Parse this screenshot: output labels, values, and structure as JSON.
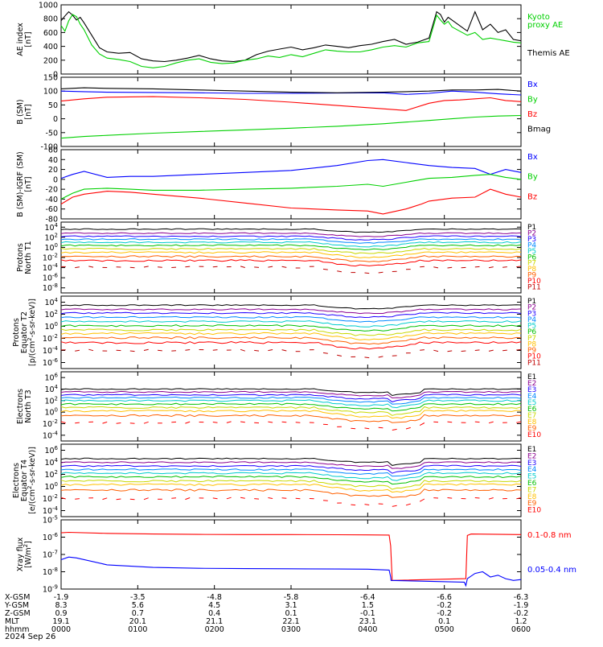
{
  "figure": {
    "date": "2024 Sep 26"
  },
  "colors": {
    "black": "#000000",
    "green": "#00d000",
    "blue": "#0000ff",
    "red": "#ff0000",
    "ramp": [
      "#000000",
      "#8b0090",
      "#2000ff",
      "#0088ff",
      "#00cccc",
      "#00c000",
      "#c8d800",
      "#ffc000",
      "#ff6000",
      "#ff0000",
      "#c00000"
    ]
  },
  "chart_data": [
    {
      "id": "ae",
      "type": "line",
      "ylabel": "AE index\n[nT]",
      "ylim": [
        0,
        1000
      ],
      "yticks": [
        "0",
        "200",
        "400",
        "600",
        "800",
        "1000"
      ],
      "yticks_v": [
        0,
        200,
        400,
        600,
        800,
        1000
      ],
      "legend": [
        {
          "label": "Kyoto\nproxy AE",
          "color": "green"
        },
        {
          "label": "Themis AE",
          "color": "black"
        }
      ],
      "series": [
        {
          "name": "Themis AE",
          "color": "black",
          "x": [
            0,
            5,
            10,
            15,
            20,
            25,
            30,
            40,
            50,
            60,
            75,
            90,
            105,
            120,
            135,
            150,
            165,
            180,
            195,
            210,
            225,
            240,
            255,
            270,
            285,
            300,
            315,
            330,
            345,
            360,
            375,
            390,
            405,
            420,
            435,
            450,
            465,
            480,
            490,
            495,
            500,
            505,
            510,
            520,
            530,
            540,
            550,
            560,
            570,
            580,
            590,
            600
          ],
          "y": [
            770,
            840,
            900,
            850,
            780,
            820,
            740,
            560,
            380,
            320,
            300,
            310,
            220,
            190,
            180,
            200,
            230,
            270,
            220,
            190,
            180,
            200,
            280,
            330,
            360,
            390,
            350,
            380,
            420,
            400,
            380,
            410,
            430,
            470,
            500,
            430,
            460,
            520,
            900,
            860,
            750,
            820,
            780,
            700,
            620,
            900,
            640,
            720,
            600,
            640,
            500,
            480
          ]
        },
        {
          "name": "Kyoto proxy AE",
          "color": "green",
          "x": [
            0,
            5,
            10,
            15,
            20,
            25,
            30,
            40,
            50,
            60,
            75,
            90,
            105,
            120,
            135,
            150,
            165,
            180,
            195,
            210,
            225,
            240,
            255,
            270,
            285,
            300,
            315,
            330,
            345,
            360,
            375,
            390,
            405,
            420,
            435,
            450,
            465,
            480,
            490,
            495,
            500,
            505,
            510,
            520,
            530,
            540,
            550,
            560,
            570,
            580,
            590,
            600
          ],
          "y": [
            700,
            620,
            770,
            860,
            830,
            720,
            640,
            420,
            290,
            230,
            210,
            180,
            110,
            90,
            110,
            160,
            200,
            220,
            170,
            150,
            160,
            200,
            220,
            260,
            240,
            280,
            250,
            300,
            350,
            330,
            320,
            320,
            350,
            390,
            410,
            390,
            450,
            470,
            850,
            780,
            720,
            760,
            680,
            620,
            560,
            600,
            500,
            520,
            500,
            480,
            460,
            450
          ]
        }
      ]
    },
    {
      "id": "bsm",
      "type": "line",
      "ylabel": "B (SM)\n[nT]",
      "ylim": [
        -100,
        150
      ],
      "yticks": [
        "-100",
        "-50",
        "0",
        "50",
        "100",
        "150"
      ],
      "yticks_v": [
        -100,
        -50,
        0,
        50,
        100,
        150
      ],
      "legend": [
        {
          "label": "Bx",
          "color": "blue"
        },
        {
          "label": "By",
          "color": "green"
        },
        {
          "label": "Bz",
          "color": "red"
        },
        {
          "label": "Bmag",
          "color": "black"
        }
      ],
      "series": [
        {
          "name": "Bx",
          "color": "blue",
          "x": [
            0,
            30,
            60,
            120,
            180,
            240,
            300,
            360,
            420,
            450,
            480,
            510,
            540,
            570,
            600
          ],
          "y": [
            100,
            98,
            96,
            95,
            94,
            92,
            92,
            93,
            94,
            88,
            92,
            100,
            96,
            90,
            86
          ]
        },
        {
          "name": "By",
          "color": "green",
          "x": [
            0,
            30,
            60,
            120,
            180,
            240,
            300,
            360,
            420,
            450,
            480,
            510,
            540,
            570,
            600
          ],
          "y": [
            -70,
            -64,
            -60,
            -52,
            -46,
            -40,
            -34,
            -27,
            -18,
            -12,
            -6,
            0,
            6,
            10,
            12
          ]
        },
        {
          "name": "Bz",
          "color": "red",
          "x": [
            0,
            30,
            60,
            120,
            180,
            240,
            300,
            360,
            420,
            450,
            480,
            500,
            520,
            540,
            560,
            580,
            600
          ],
          "y": [
            64,
            72,
            78,
            80,
            76,
            70,
            60,
            48,
            36,
            30,
            56,
            66,
            68,
            72,
            76,
            66,
            62
          ]
        },
        {
          "name": "Bmag",
          "color": "black",
          "x": [
            0,
            30,
            60,
            120,
            180,
            240,
            300,
            360,
            420,
            450,
            480,
            510,
            540,
            570,
            600
          ],
          "y": [
            108,
            112,
            110,
            108,
            104,
            100,
            96,
            94,
            96,
            98,
            100,
            104,
            104,
            106,
            100
          ]
        }
      ]
    },
    {
      "id": "bigrf",
      "type": "line",
      "ylabel": "B (SM)-IGRF (SM)\n[nT]",
      "ylim": [
        -80,
        60
      ],
      "yticks": [
        "-80",
        "-60",
        "-40",
        "-20",
        "0",
        "20",
        "40",
        "60"
      ],
      "yticks_v": [
        -80,
        -60,
        -40,
        -20,
        0,
        20,
        40,
        60
      ],
      "legend": [
        {
          "label": "Bx",
          "color": "blue"
        },
        {
          "label": "By",
          "color": "green"
        },
        {
          "label": "Bz",
          "color": "red"
        }
      ],
      "series": [
        {
          "name": "Bx",
          "color": "blue",
          "x": [
            0,
            15,
            30,
            60,
            90,
            120,
            180,
            240,
            300,
            360,
            400,
            420,
            450,
            480,
            510,
            540,
            560,
            580,
            600
          ],
          "y": [
            2,
            10,
            16,
            4,
            6,
            6,
            10,
            14,
            18,
            28,
            38,
            40,
            34,
            28,
            24,
            22,
            10,
            20,
            14
          ]
        },
        {
          "name": "By",
          "color": "green",
          "x": [
            0,
            15,
            30,
            60,
            90,
            120,
            180,
            240,
            300,
            360,
            400,
            420,
            450,
            480,
            510,
            540,
            560,
            580,
            600
          ],
          "y": [
            -40,
            -28,
            -20,
            -18,
            -20,
            -22,
            -22,
            -20,
            -18,
            -14,
            -10,
            -14,
            -6,
            2,
            4,
            8,
            10,
            4,
            0
          ]
        },
        {
          "name": "Bz",
          "color": "red",
          "x": [
            0,
            15,
            30,
            60,
            90,
            120,
            180,
            240,
            300,
            360,
            400,
            420,
            450,
            470,
            480,
            510,
            540,
            560,
            580,
            600
          ],
          "y": [
            -50,
            -36,
            -30,
            -24,
            -26,
            -30,
            -38,
            -48,
            -58,
            -62,
            -64,
            -70,
            -60,
            -50,
            -44,
            -38,
            -36,
            -20,
            -30,
            -36
          ]
        }
      ]
    },
    {
      "id": "p_north",
      "type": "line",
      "ylabel": "Protons\nNorth T1",
      "ylim_log": [
        -9,
        5
      ],
      "yticks": [
        "10^-8",
        "10^-6",
        "10^-4",
        "10^-2",
        "10^0",
        "10^2",
        "10^4"
      ],
      "yticks_v": [
        -8,
        -6,
        -4,
        -2,
        0,
        2,
        4
      ],
      "legend": [
        "P1",
        "P2",
        "P3",
        "P4",
        "P5",
        "P6",
        "P7",
        "P8",
        "P9",
        "P10",
        "P11"
      ],
      "levels": [
        3.6,
        2.8,
        2.2,
        1.6,
        1.0,
        0.4,
        -0.3,
        -1.0,
        -1.8,
        -2.6,
        -3.9
      ]
    },
    {
      "id": "p_equat",
      "type": "line",
      "ylabel": "Protons\nEquator T2\n[p/(cm^2-s-sr-keV)]",
      "ylim_log": [
        -7,
        5
      ],
      "yticks": [
        "10^-6",
        "10^-4",
        "10^-2",
        "10^0",
        "10^2",
        "10^4"
      ],
      "yticks_v": [
        -6,
        -4,
        -2,
        0,
        2,
        4
      ],
      "legend": [
        "P1",
        "P2",
        "P3",
        "P4",
        "P5",
        "P6",
        "P7",
        "P8",
        "P9",
        "P10",
        "P11"
      ],
      "levels": [
        3.5,
        2.8,
        2.2,
        1.5,
        0.8,
        0.1,
        -0.6,
        -1.2,
        -1.9,
        -2.7,
        -4.0
      ]
    },
    {
      "id": "e_north",
      "type": "line",
      "ylabel": "Electrons\nNorth T3",
      "ylim_log": [
        -5,
        7
      ],
      "yticks": [
        "10^-4",
        "10^-2",
        "10^0",
        "10^2",
        "10^4",
        "10^6"
      ],
      "yticks_v": [
        -4,
        -2,
        0,
        2,
        4,
        6
      ],
      "legend": [
        "E1",
        "E2",
        "E3",
        "E4",
        "E5",
        "E6",
        "E7",
        "E8",
        "E9",
        "E10"
      ],
      "levels": [
        4.0,
        3.5,
        3.0,
        2.5,
        2.0,
        1.4,
        0.8,
        0.2,
        -0.6,
        -1.8
      ]
    },
    {
      "id": "e_equat",
      "type": "line",
      "ylabel": "Electrons\nEquator T4\n[e/(cm^2-s-sr-keV)]",
      "ylim_log": [
        -5,
        7
      ],
      "yticks": [
        "10^-4",
        "10^-2",
        "10^0",
        "10^2",
        "10^4",
        "10^6"
      ],
      "yticks_v": [
        -4,
        -2,
        0,
        2,
        4,
        6
      ],
      "legend": [
        "E1",
        "E2",
        "E3",
        "E4",
        "E5",
        "E6",
        "E7",
        "E8",
        "E9",
        "E10"
      ],
      "levels": [
        4.6,
        4.0,
        3.4,
        2.8,
        2.2,
        1.6,
        0.9,
        0.3,
        -0.6,
        -2.0
      ]
    },
    {
      "id": "xray",
      "type": "line",
      "ylabel": "Xray flux\n[W/m^2]",
      "ylim_log": [
        -9,
        -5
      ],
      "yticks": [
        "10^-9",
        "10^-8",
        "10^-7",
        "10^-6",
        "10^-5"
      ],
      "yticks_v": [
        -9,
        -8,
        -7,
        -6,
        -5
      ],
      "legend": [
        {
          "label": "0.1-0.8 nm",
          "color": "red"
        },
        {
          "label": "0.05-0.4 nm",
          "color": "blue"
        }
      ],
      "series": [
        {
          "name": "0.1-0.8 nm",
          "color": "red",
          "x": [
            0,
            10,
            60,
            120,
            180,
            240,
            300,
            360,
            400,
            428,
            430,
            432,
            528,
            530,
            535,
            600
          ],
          "y": [
            -5.75,
            -5.72,
            -5.78,
            -5.82,
            -5.84,
            -5.85,
            -5.85,
            -5.86,
            -5.87,
            -5.88,
            -6.5,
            -8.5,
            -8.4,
            -5.9,
            -5.82,
            -5.85
          ]
        },
        {
          "name": "0.05-0.4 nm",
          "color": "blue",
          "x": [
            0,
            10,
            20,
            60,
            120,
            180,
            240,
            300,
            360,
            400,
            428,
            430,
            430.5,
            526,
            528,
            530,
            540,
            550,
            560,
            570,
            580,
            590,
            600
          ],
          "y": [
            -7.3,
            -7.15,
            -7.2,
            -7.6,
            -7.75,
            -7.8,
            -7.82,
            -7.83,
            -7.84,
            -7.85,
            -7.9,
            -8.3,
            -8.5,
            -8.6,
            -8.8,
            -8.4,
            -8.1,
            -8.0,
            -8.3,
            -8.2,
            -8.4,
            -8.5,
            -8.45
          ]
        }
      ]
    }
  ],
  "xaxis": {
    "row_labels": [
      "X-GSM",
      "Y-GSM",
      "Z-GSM",
      "MLT",
      "hhmm"
    ],
    "ticks": [
      {
        "x": 0,
        "values": [
          "-1.9",
          "8.3",
          "0.9",
          "19.1",
          "0000"
        ]
      },
      {
        "x": 100,
        "values": [
          "-3.5",
          "5.6",
          "0.7",
          "20.1",
          "0100"
        ]
      },
      {
        "x": 200,
        "values": [
          "-4.8",
          "4.5",
          "0.4",
          "21.1",
          "0200"
        ]
      },
      {
        "x": 300,
        "values": [
          "-5.8",
          "3.1",
          "0.1",
          "22.1",
          "0300"
        ]
      },
      {
        "x": 400,
        "values": [
          "-6.4",
          "1.5",
          "-0.1",
          "23.1",
          "0400"
        ]
      },
      {
        "x": 500,
        "values": [
          "-6.6",
          "-0.2",
          "-0.2",
          "0.1",
          "0500"
        ]
      },
      {
        "x": 600,
        "values": [
          "-6.3",
          "-1.9",
          "-0.2",
          "1.2",
          "0600"
        ]
      }
    ]
  }
}
